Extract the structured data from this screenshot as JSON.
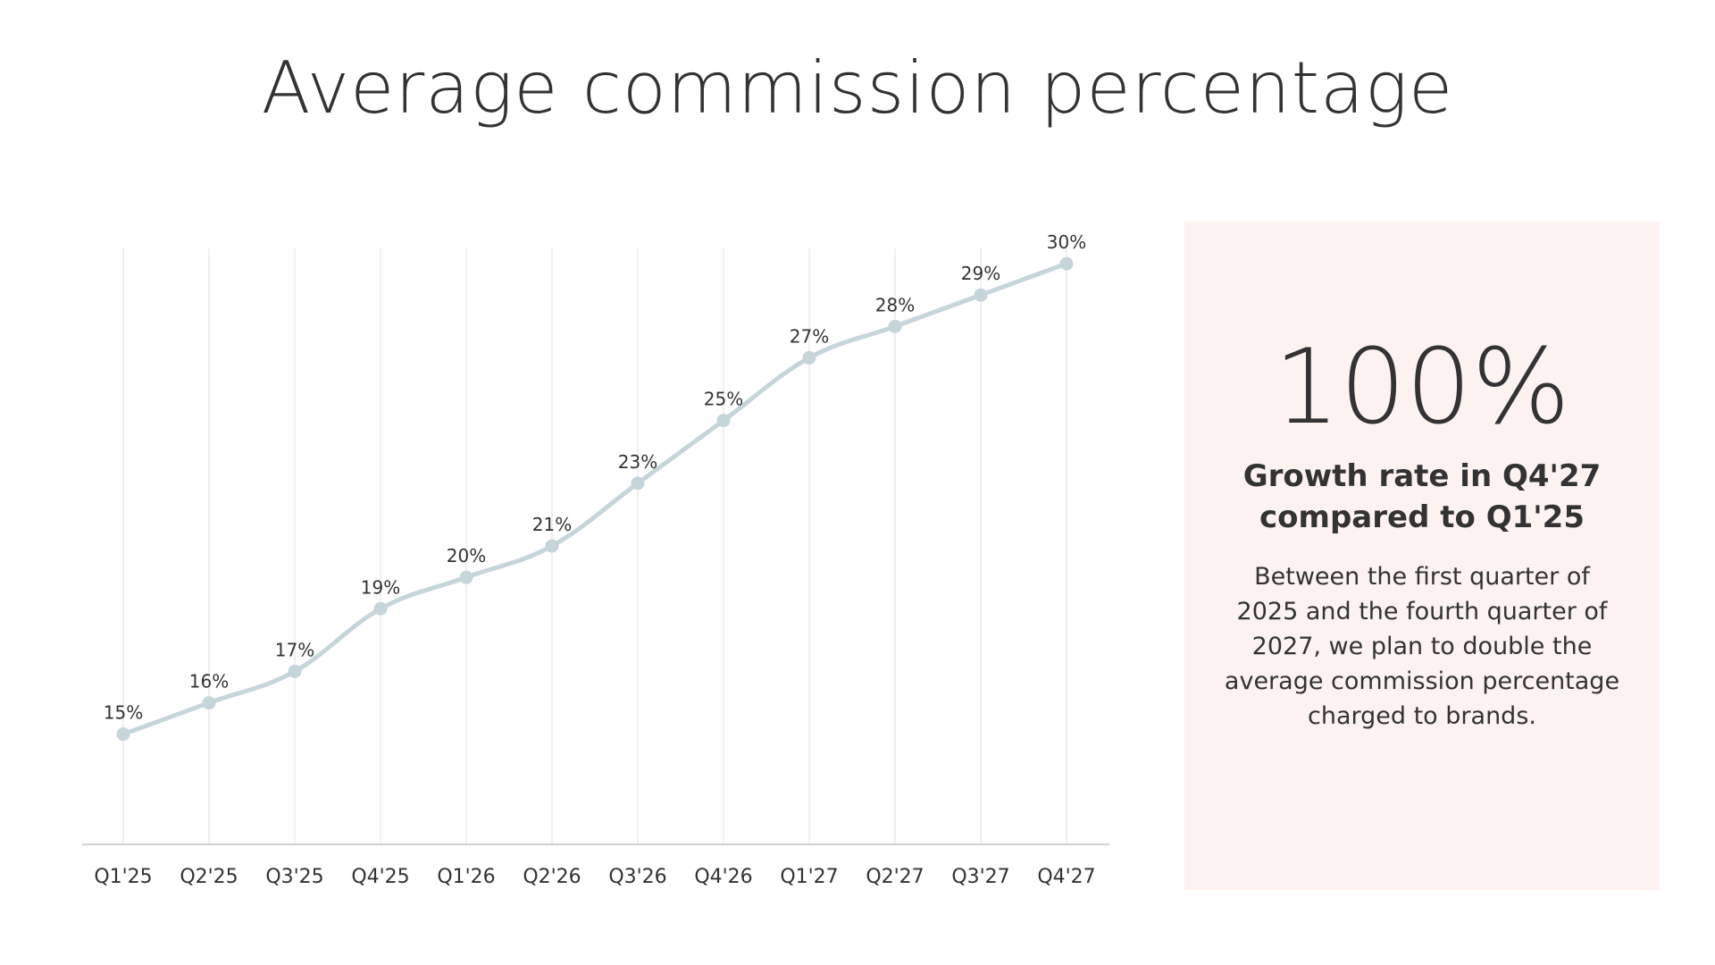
{
  "title": "Average commission percentage",
  "chart_data": {
    "type": "line",
    "title": "Average commission percentage",
    "categories": [
      "Q1'25",
      "Q2'25",
      "Q3'25",
      "Q4'25",
      "Q1'26",
      "Q2'26",
      "Q3'26",
      "Q4'26",
      "Q1'27",
      "Q2'27",
      "Q3'27",
      "Q4'27"
    ],
    "series": [
      {
        "name": "Average commission percentage",
        "values": [
          15,
          16,
          17,
          19,
          20,
          21,
          23,
          25,
          27,
          28,
          29,
          30
        ],
        "labels": [
          "15%",
          "16%",
          "17%",
          "19%",
          "20%",
          "21%",
          "23%",
          "25%",
          "27%",
          "28%",
          "29%",
          "30%"
        ]
      }
    ],
    "xlabel": "",
    "ylabel": "",
    "ylim": [
      12,
      31
    ],
    "grid": "vertical",
    "line_color": "#c5d5da",
    "grid_color": "#ececec",
    "axis_color": "#d0d0d0"
  },
  "stat": {
    "value": "100%",
    "label": "Growth rate in Q4'27 compared to Q1'25",
    "description": "Between the first quarter of 2025 and the fourth quarter of 2027, we plan to double the average commission percentage charged to brands."
  },
  "colors": {
    "panel_background": "#fcf3f0",
    "text": "#333333"
  }
}
